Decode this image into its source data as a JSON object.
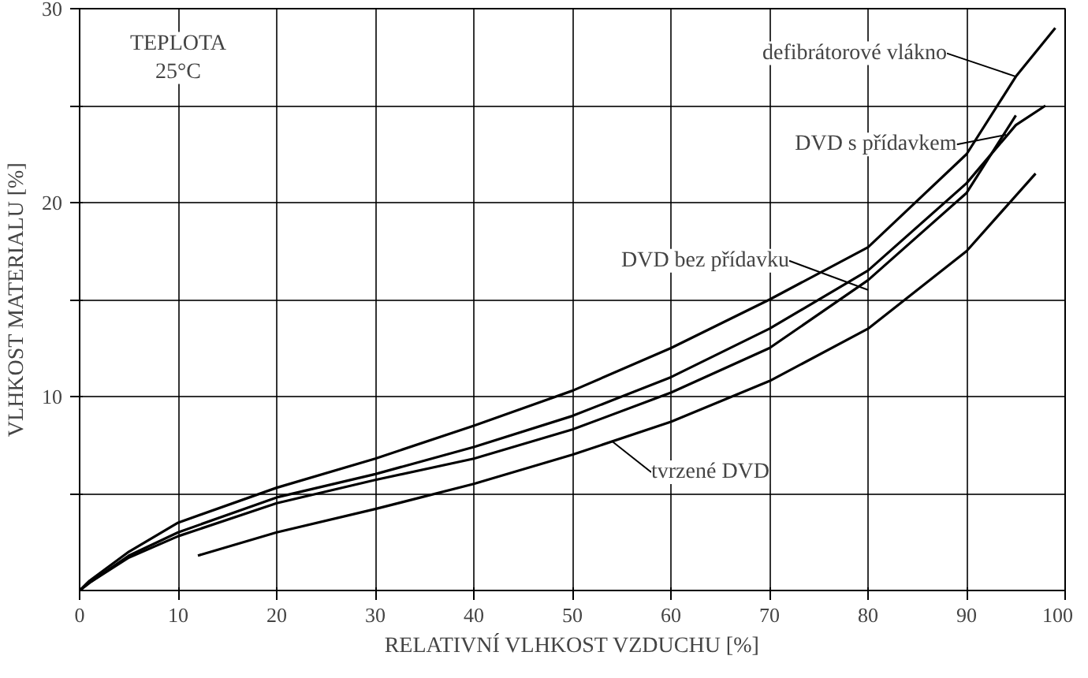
{
  "chart_data": {
    "type": "line",
    "xlabel": "RELATIVNÍ VLHKOST VZDUCHU [%]",
    "ylabel": "VLHKOST MATERIALU [%]",
    "xlim": [
      0,
      100
    ],
    "ylim": [
      0,
      30
    ],
    "xticks": [
      0,
      10,
      20,
      30,
      40,
      50,
      60,
      70,
      80,
      90,
      100
    ],
    "yticks": [
      {
        "value": 5,
        "label": null
      },
      10,
      {
        "value": 15,
        "label": null
      },
      20,
      {
        "value": 25,
        "label": null
      },
      30
    ],
    "grid": true,
    "marker": "none",
    "line_style": "solid",
    "series": [
      {
        "color": "#000000",
        "x": [
          0,
          1,
          5,
          10,
          20,
          30,
          40,
          50,
          60,
          70,
          80,
          90,
          95,
          99
        ],
        "values": [
          0,
          0.5,
          2,
          3.5,
          5.3,
          6.8,
          8.5,
          10.3,
          12.5,
          15,
          17.7,
          22.5,
          26.5,
          29
        ]
      },
      {
        "color": "#000000",
        "x": [
          0,
          1,
          5,
          10,
          20,
          30,
          40,
          50,
          60,
          70,
          80,
          90,
          95,
          98
        ],
        "values": [
          0,
          0.4,
          1.8,
          3,
          4.8,
          6,
          7.4,
          9,
          11,
          13.5,
          16.5,
          21,
          24,
          25
        ]
      },
      {
        "color": "#000000",
        "x": [
          0,
          1,
          5,
          10,
          20,
          30,
          40,
          50,
          60,
          70,
          80,
          90,
          95
        ],
        "values": [
          0,
          0.4,
          1.7,
          2.8,
          4.5,
          5.7,
          6.8,
          8.3,
          10.2,
          12.5,
          16,
          20.5,
          24.5
        ]
      },
      {
        "color": "#000000",
        "x": [
          12,
          20,
          30,
          40,
          50,
          60,
          70,
          80,
          90,
          97
        ],
        "values": [
          1.8,
          3,
          4.2,
          5.5,
          7,
          8.7,
          10.8,
          13.5,
          17.5,
          21.5
        ]
      }
    ],
    "annotations": [
      "TEPLOTA\n25°C",
      {
        "text": "defibrátorové vlákno",
        "x": 95,
        "y": 26.5
      },
      {
        "text": "DVD s přídavkem",
        "x": 94,
        "y": 23.5
      },
      {
        "text": "DVD bez přídavku",
        "x": 80,
        "y": 15.5
      },
      {
        "text": "tvrzené DVD",
        "x": 54,
        "y": 7.7
      }
    ]
  }
}
